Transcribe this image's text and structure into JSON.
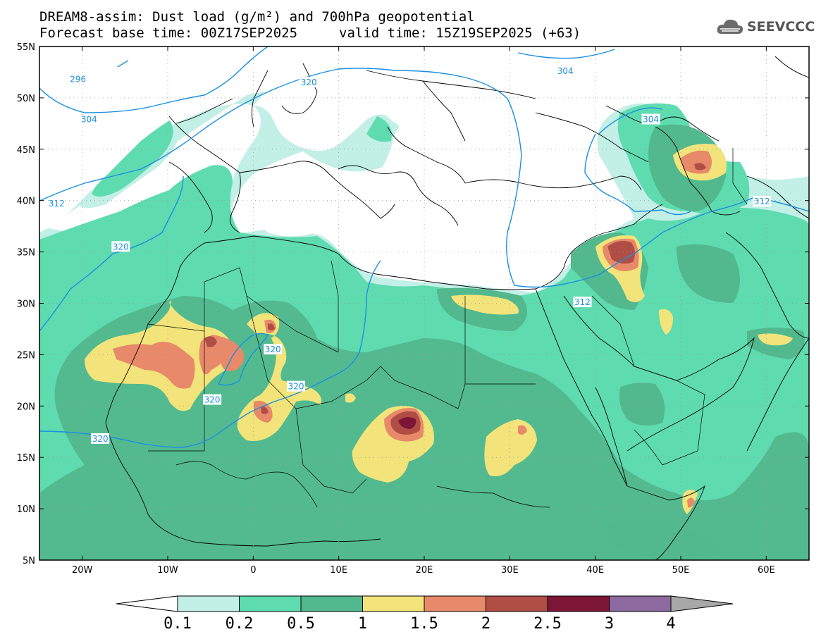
{
  "title": {
    "line1": "DREAM8-assim: Dust load (g/m²) and 700hPa geopotential",
    "line2": "Forecast base time: 00Z17SEP2025",
    "line2_valid": "valid time: 15Z19SEP2025 (+63)"
  },
  "logo": {
    "text": "SEEVCCC",
    "icon": "cloud-icon"
  },
  "map": {
    "lon_range": [
      -25,
      65
    ],
    "lat_range": [
      5,
      55
    ],
    "lon_ticks": [
      "20W",
      "10W",
      "0",
      "10E",
      "20E",
      "30E",
      "40E",
      "50E",
      "60E"
    ],
    "lon_tick_values": [
      -20,
      -10,
      0,
      10,
      20,
      30,
      40,
      50,
      60
    ],
    "lat_ticks": [
      "55N",
      "50N",
      "45N",
      "40N",
      "35N",
      "30N",
      "25N",
      "20N",
      "15N",
      "10N",
      "5N"
    ],
    "lat_tick_values": [
      55,
      50,
      45,
      40,
      35,
      30,
      25,
      20,
      15,
      10,
      5
    ]
  },
  "contour_labels": [
    {
      "text": "296",
      "lon": -20.5,
      "lat": 51.8
    },
    {
      "text": "304",
      "lon": -19.2,
      "lat": 47.9
    },
    {
      "text": "320",
      "lon": 6.5,
      "lat": 51.5
    },
    {
      "text": "304",
      "lon": 36.5,
      "lat": 52.6
    },
    {
      "text": "304",
      "lon": 46.5,
      "lat": 47.9
    },
    {
      "text": "312",
      "lon": -23,
      "lat": 39.7
    },
    {
      "text": "320",
      "lon": -15.5,
      "lat": 35.5
    },
    {
      "text": "312",
      "lon": 59.5,
      "lat": 39.9
    },
    {
      "text": "312",
      "lon": 38.5,
      "lat": 30.1
    },
    {
      "text": "320",
      "lon": 2.3,
      "lat": 25.5
    },
    {
      "text": "320",
      "lon": -4.8,
      "lat": 20.6
    },
    {
      "text": "320",
      "lon": 5,
      "lat": 21.9
    },
    {
      "text": "320",
      "lon": -17.9,
      "lat": 16.8
    }
  ],
  "colorbar": {
    "labels": [
      "0.1",
      "0.2",
      "0.5",
      "1",
      "1.5",
      "2",
      "2.5",
      "3",
      "4"
    ],
    "colors": [
      "#c2efe6",
      "#5fdbb0",
      "#52b88e",
      "#f2e47a",
      "#e8896a",
      "#b04d45",
      "#7d1636",
      "#8c6aa0"
    ],
    "min_color": "#ffffff",
    "max_color": "#a8a8a8"
  },
  "colors": {
    "contour": "#1a8fe0",
    "coast": "#000000",
    "ocean": "#ffffff"
  }
}
